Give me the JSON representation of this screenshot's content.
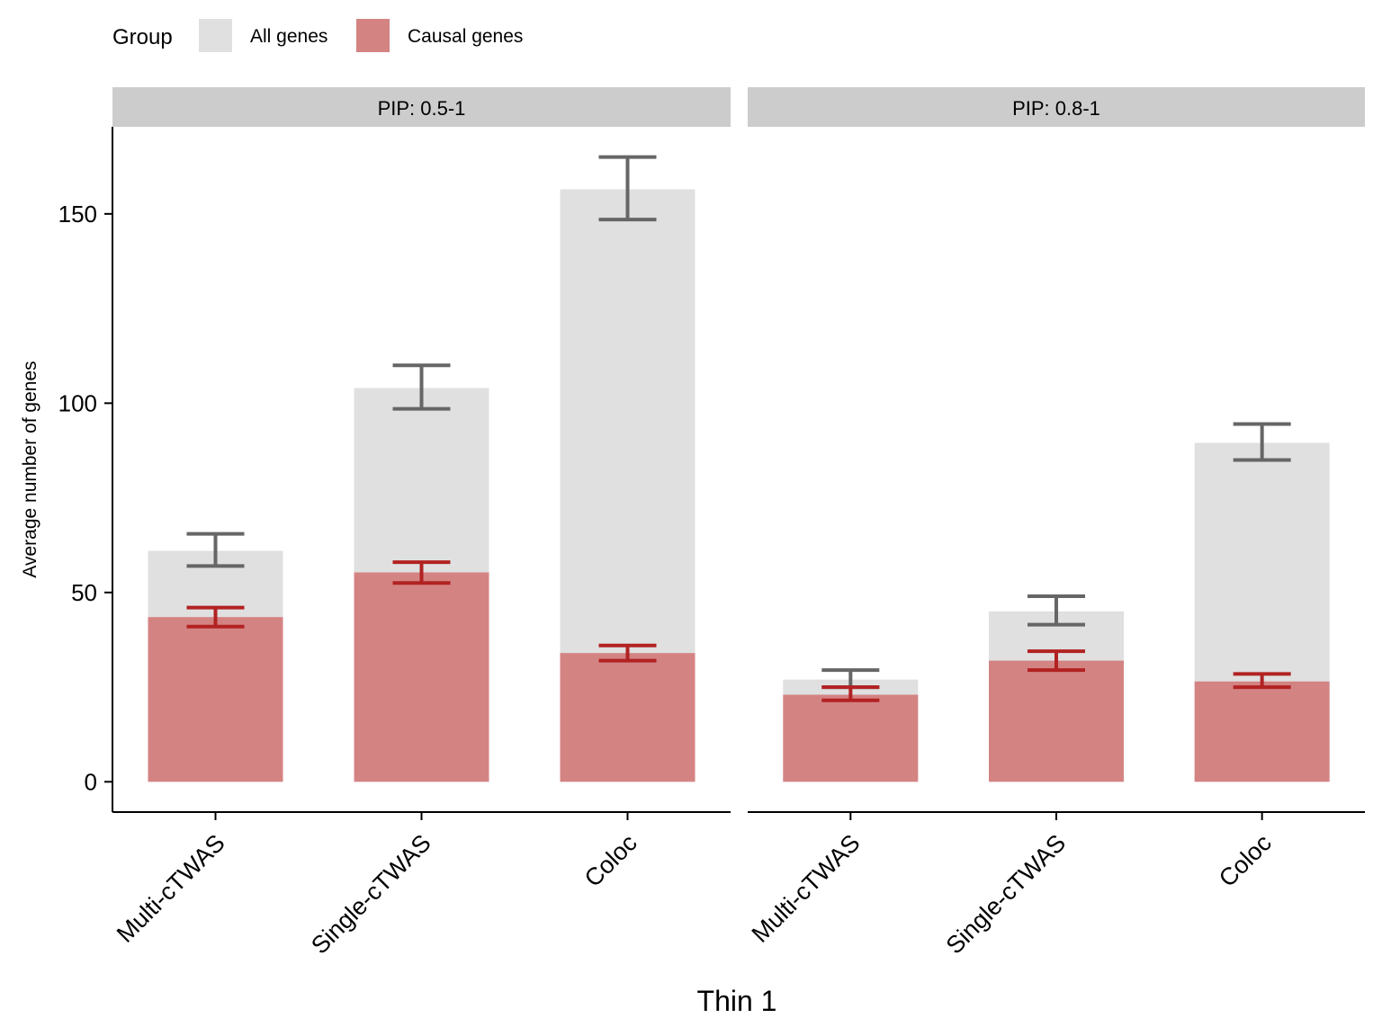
{
  "chart_data": {
    "type": "bar",
    "xlabel": "Thin 1",
    "ylabel": "Average number of genes",
    "ylim": [
      -8,
      173
    ],
    "yticks": [
      0,
      50,
      100,
      150
    ],
    "legend": {
      "title": "Group",
      "position": "top-left",
      "entries": [
        {
          "label": "All genes",
          "color": "#e0e0e0"
        },
        {
          "label": "Causal genes",
          "color": "#d48383"
        }
      ]
    },
    "colors": {
      "all_bar": "#e0e0e0",
      "causal_bar": "#d48383",
      "all_error": "#666666",
      "causal_error": "#b22222",
      "strip": "#cccccc"
    },
    "categories": [
      "Multi-cTWAS",
      "Single-cTWAS",
      "Coloc"
    ],
    "panels": [
      {
        "strip": "PIP: 0.5-1",
        "series": [
          {
            "name": "All genes",
            "values": [
              61,
              104,
              156.5
            ],
            "err_low": [
              57,
              98.5,
              148.5
            ],
            "err_high": [
              65.5,
              110,
              165
            ]
          },
          {
            "name": "Causal genes",
            "values": [
              43.5,
              55.3,
              34
            ],
            "err_low": [
              41,
              52.5,
              32
            ],
            "err_high": [
              46,
              58,
              36
            ]
          }
        ]
      },
      {
        "strip": "PIP: 0.8-1",
        "series": [
          {
            "name": "All genes",
            "values": [
              27,
              45,
              89.5
            ],
            "err_low": [
              25,
              41.5,
              85
            ],
            "err_high": [
              29.5,
              49,
              94.5
            ]
          },
          {
            "name": "Causal genes",
            "values": [
              23,
              32,
              26.5
            ],
            "err_low": [
              21.5,
              29.5,
              25
            ],
            "err_high": [
              25,
              34.5,
              28.5
            ]
          }
        ]
      }
    ]
  }
}
